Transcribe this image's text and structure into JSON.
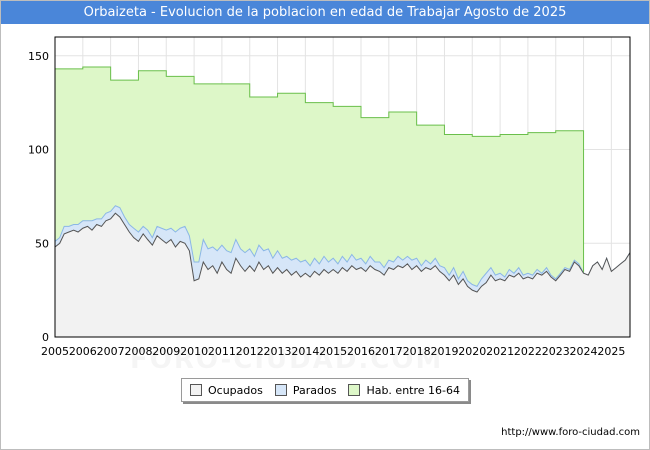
{
  "title": "Orbaizeta - Evolucion de la poblacion en edad de Trabajar Agosto de 2025",
  "source_url": "http://www.foro-ciudad.com",
  "watermark": "FORO-CIUDAD.COM",
  "colors": {
    "title_bg": "#4a86d9",
    "hab_fill": "#ddf7c8",
    "hab_line": "#6abf4b",
    "parados_fill": "#d6e6f8",
    "parados_line": "#8bb7e6",
    "ocupados_fill": "#f2f2f2",
    "ocupados_line": "#555555"
  },
  "chart_data": {
    "type": "area",
    "title": "Orbaizeta - Evolucion de la poblacion en edad de Trabajar Agosto de 2025",
    "xlabel": "",
    "ylabel": "",
    "xlim": [
      2005,
      2025.67
    ],
    "ylim": [
      0,
      160
    ],
    "yticks": [
      0,
      50,
      100,
      150
    ],
    "xticks": [
      "2005",
      "2006",
      "2007",
      "2008",
      "2009",
      "2010",
      "2011",
      "2012",
      "2013",
      "2014",
      "2015",
      "2016",
      "2017",
      "2018",
      "2019",
      "2020",
      "2021",
      "2022",
      "2023",
      "2024",
      "2025"
    ],
    "grid": true,
    "legend": [
      "Ocupados",
      "Parados",
      "Hab. entre 16-64"
    ],
    "hab_by_year": [
      {
        "year": 2005,
        "value": 143
      },
      {
        "year": 2006,
        "value": 144
      },
      {
        "year": 2007,
        "value": 137
      },
      {
        "year": 2008,
        "value": 142
      },
      {
        "year": 2009,
        "value": 139
      },
      {
        "year": 2010,
        "value": 135
      },
      {
        "year": 2011,
        "value": 135
      },
      {
        "year": 2012,
        "value": 128
      },
      {
        "year": 2013,
        "value": 130
      },
      {
        "year": 2014,
        "value": 125
      },
      {
        "year": 2015,
        "value": 123
      },
      {
        "year": 2016,
        "value": 117
      },
      {
        "year": 2017,
        "value": 120
      },
      {
        "year": 2018,
        "value": 113
      },
      {
        "year": 2019,
        "value": 108
      },
      {
        "year": 2020,
        "value": 107
      },
      {
        "year": 2021,
        "value": 108
      },
      {
        "year": 2022,
        "value": 109
      },
      {
        "year": 2023,
        "value": 110
      }
    ],
    "series": [
      {
        "name": "Ocupados",
        "points": [
          [
            2005.0,
            48
          ],
          [
            2005.17,
            50
          ],
          [
            2005.33,
            55
          ],
          [
            2005.5,
            56
          ],
          [
            2005.67,
            57
          ],
          [
            2005.83,
            56
          ],
          [
            2006.0,
            58
          ],
          [
            2006.17,
            59
          ],
          [
            2006.33,
            57
          ],
          [
            2006.5,
            60
          ],
          [
            2006.67,
            59
          ],
          [
            2006.83,
            62
          ],
          [
            2007.0,
            63
          ],
          [
            2007.17,
            66
          ],
          [
            2007.33,
            64
          ],
          [
            2007.5,
            60
          ],
          [
            2007.67,
            56
          ],
          [
            2007.83,
            53
          ],
          [
            2008.0,
            51
          ],
          [
            2008.17,
            55
          ],
          [
            2008.33,
            52
          ],
          [
            2008.5,
            49
          ],
          [
            2008.67,
            54
          ],
          [
            2008.83,
            52
          ],
          [
            2009.0,
            50
          ],
          [
            2009.17,
            52
          ],
          [
            2009.33,
            48
          ],
          [
            2009.5,
            51
          ],
          [
            2009.67,
            50
          ],
          [
            2009.83,
            46
          ],
          [
            2010.0,
            30
          ],
          [
            2010.17,
            31
          ],
          [
            2010.33,
            40
          ],
          [
            2010.5,
            36
          ],
          [
            2010.67,
            38
          ],
          [
            2010.83,
            34
          ],
          [
            2011.0,
            40
          ],
          [
            2011.17,
            36
          ],
          [
            2011.33,
            34
          ],
          [
            2011.5,
            42
          ],
          [
            2011.67,
            38
          ],
          [
            2011.83,
            35
          ],
          [
            2012.0,
            38
          ],
          [
            2012.17,
            35
          ],
          [
            2012.33,
            40
          ],
          [
            2012.5,
            36
          ],
          [
            2012.67,
            38
          ],
          [
            2012.83,
            34
          ],
          [
            2013.0,
            37
          ],
          [
            2013.17,
            34
          ],
          [
            2013.33,
            36
          ],
          [
            2013.5,
            33
          ],
          [
            2013.67,
            35
          ],
          [
            2013.83,
            32
          ],
          [
            2014.0,
            34
          ],
          [
            2014.17,
            32
          ],
          [
            2014.33,
            35
          ],
          [
            2014.5,
            33
          ],
          [
            2014.67,
            36
          ],
          [
            2014.83,
            34
          ],
          [
            2015.0,
            36
          ],
          [
            2015.17,
            34
          ],
          [
            2015.33,
            37
          ],
          [
            2015.5,
            35
          ],
          [
            2015.67,
            38
          ],
          [
            2015.83,
            36
          ],
          [
            2016.0,
            37
          ],
          [
            2016.17,
            35
          ],
          [
            2016.33,
            38
          ],
          [
            2016.5,
            36
          ],
          [
            2016.67,
            35
          ],
          [
            2016.83,
            33
          ],
          [
            2017.0,
            37
          ],
          [
            2017.17,
            36
          ],
          [
            2017.33,
            38
          ],
          [
            2017.5,
            37
          ],
          [
            2017.67,
            39
          ],
          [
            2017.83,
            36
          ],
          [
            2018.0,
            38
          ],
          [
            2018.17,
            35
          ],
          [
            2018.33,
            37
          ],
          [
            2018.5,
            36
          ],
          [
            2018.67,
            38
          ],
          [
            2018.83,
            35
          ],
          [
            2019.0,
            33
          ],
          [
            2019.17,
            30
          ],
          [
            2019.33,
            33
          ],
          [
            2019.5,
            28
          ],
          [
            2019.67,
            31
          ],
          [
            2019.83,
            27
          ],
          [
            2020.0,
            25
          ],
          [
            2020.17,
            24
          ],
          [
            2020.33,
            27
          ],
          [
            2020.5,
            29
          ],
          [
            2020.67,
            33
          ],
          [
            2020.83,
            30
          ],
          [
            2021.0,
            31
          ],
          [
            2021.17,
            30
          ],
          [
            2021.33,
            33
          ],
          [
            2021.5,
            32
          ],
          [
            2021.67,
            34
          ],
          [
            2021.83,
            31
          ],
          [
            2022.0,
            32
          ],
          [
            2022.17,
            31
          ],
          [
            2022.33,
            34
          ],
          [
            2022.5,
            33
          ],
          [
            2022.67,
            35
          ],
          [
            2022.83,
            32
          ],
          [
            2023.0,
            30
          ],
          [
            2023.17,
            33
          ],
          [
            2023.33,
            36
          ],
          [
            2023.5,
            35
          ],
          [
            2023.67,
            40
          ],
          [
            2023.83,
            38
          ],
          [
            2024.0,
            34
          ],
          [
            2024.17,
            33
          ],
          [
            2024.33,
            38
          ],
          [
            2024.5,
            40
          ],
          [
            2024.67,
            36
          ],
          [
            2024.83,
            42
          ],
          [
            2025.0,
            35
          ],
          [
            2025.17,
            37
          ],
          [
            2025.33,
            39
          ],
          [
            2025.5,
            41
          ],
          [
            2025.67,
            45
          ]
        ]
      },
      {
        "name": "Parados",
        "points": [
          [
            2005.0,
            3
          ],
          [
            2005.17,
            3
          ],
          [
            2005.33,
            4
          ],
          [
            2005.5,
            3
          ],
          [
            2005.67,
            3
          ],
          [
            2005.83,
            4
          ],
          [
            2006.0,
            4
          ],
          [
            2006.17,
            3
          ],
          [
            2006.33,
            5
          ],
          [
            2006.5,
            3
          ],
          [
            2006.67,
            4
          ],
          [
            2006.83,
            4
          ],
          [
            2007.0,
            4
          ],
          [
            2007.17,
            4
          ],
          [
            2007.33,
            5
          ],
          [
            2007.5,
            4
          ],
          [
            2007.67,
            4
          ],
          [
            2007.83,
            5
          ],
          [
            2008.0,
            5
          ],
          [
            2008.17,
            4
          ],
          [
            2008.33,
            5
          ],
          [
            2008.5,
            4
          ],
          [
            2008.67,
            5
          ],
          [
            2008.83,
            6
          ],
          [
            2009.0,
            7
          ],
          [
            2009.17,
            6
          ],
          [
            2009.33,
            8
          ],
          [
            2009.5,
            7
          ],
          [
            2009.67,
            9
          ],
          [
            2009.83,
            8
          ],
          [
            2010.0,
            10
          ],
          [
            2010.17,
            9
          ],
          [
            2010.33,
            12
          ],
          [
            2010.5,
            11
          ],
          [
            2010.67,
            10
          ],
          [
            2010.83,
            12
          ],
          [
            2011.0,
            9
          ],
          [
            2011.17,
            10
          ],
          [
            2011.33,
            11
          ],
          [
            2011.5,
            10
          ],
          [
            2011.67,
            9
          ],
          [
            2011.83,
            10
          ],
          [
            2012.0,
            9
          ],
          [
            2012.17,
            8
          ],
          [
            2012.33,
            9
          ],
          [
            2012.5,
            10
          ],
          [
            2012.67,
            9
          ],
          [
            2012.83,
            8
          ],
          [
            2013.0,
            9
          ],
          [
            2013.17,
            8
          ],
          [
            2013.33,
            7
          ],
          [
            2013.5,
            8
          ],
          [
            2013.67,
            7
          ],
          [
            2013.83,
            8
          ],
          [
            2014.0,
            7
          ],
          [
            2014.17,
            6
          ],
          [
            2014.33,
            7
          ],
          [
            2014.5,
            6
          ],
          [
            2014.67,
            7
          ],
          [
            2014.83,
            6
          ],
          [
            2015.0,
            6
          ],
          [
            2015.17,
            5
          ],
          [
            2015.33,
            6
          ],
          [
            2015.5,
            5
          ],
          [
            2015.67,
            6
          ],
          [
            2015.83,
            5
          ],
          [
            2016.0,
            5
          ],
          [
            2016.17,
            4
          ],
          [
            2016.33,
            5
          ],
          [
            2016.5,
            4
          ],
          [
            2016.67,
            5
          ],
          [
            2016.83,
            4
          ],
          [
            2017.0,
            4
          ],
          [
            2017.17,
            4
          ],
          [
            2017.33,
            5
          ],
          [
            2017.5,
            4
          ],
          [
            2017.67,
            4
          ],
          [
            2017.83,
            5
          ],
          [
            2018.0,
            4
          ],
          [
            2018.17,
            3
          ],
          [
            2018.33,
            4
          ],
          [
            2018.5,
            3
          ],
          [
            2018.67,
            4
          ],
          [
            2018.83,
            3
          ],
          [
            2019.0,
            4
          ],
          [
            2019.17,
            3
          ],
          [
            2019.33,
            4
          ],
          [
            2019.5,
            3
          ],
          [
            2019.67,
            4
          ],
          [
            2019.83,
            3
          ],
          [
            2020.0,
            3
          ],
          [
            2020.17,
            3
          ],
          [
            2020.33,
            4
          ],
          [
            2020.5,
            5
          ],
          [
            2020.67,
            4
          ],
          [
            2020.83,
            3
          ],
          [
            2021.0,
            3
          ],
          [
            2021.17,
            2
          ],
          [
            2021.33,
            3
          ],
          [
            2021.5,
            2
          ],
          [
            2021.67,
            3
          ],
          [
            2021.83,
            2
          ],
          [
            2022.0,
            2
          ],
          [
            2022.17,
            2
          ],
          [
            2022.33,
            2
          ],
          [
            2022.5,
            1
          ],
          [
            2022.67,
            2
          ],
          [
            2022.83,
            1
          ],
          [
            2023.0,
            1
          ],
          [
            2023.17,
            1
          ],
          [
            2023.33,
            1
          ],
          [
            2023.5,
            1
          ],
          [
            2023.67,
            1
          ],
          [
            2023.83,
            1
          ],
          [
            2024.0,
            0
          ],
          [
            2024.17,
            0
          ],
          [
            2024.33,
            0
          ],
          [
            2024.5,
            0
          ],
          [
            2024.67,
            0
          ],
          [
            2024.83,
            0
          ],
          [
            2025.0,
            0
          ],
          [
            2025.17,
            0
          ],
          [
            2025.33,
            0
          ],
          [
            2025.5,
            0
          ],
          [
            2025.67,
            0
          ]
        ]
      }
    ]
  }
}
